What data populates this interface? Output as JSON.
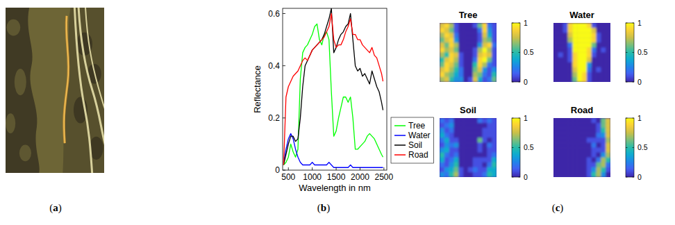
{
  "panel_labels": [
    "(a)",
    "(b)",
    "(c)"
  ],
  "chart_data": [
    {
      "type": "image"
    },
    {
      "type": "line",
      "x_label": "Wavelength in nm",
      "y_label": "Reflectance",
      "xlim": [
        380,
        2560
      ],
      "ylim": [
        0,
        0.62
      ],
      "xticks": [
        500,
        1000,
        1500,
        2000,
        2500
      ],
      "yticks": [
        0,
        0.2,
        0.4,
        0.6
      ],
      "grid": false,
      "legend": "east",
      "x": [
        400,
        450,
        500,
        550,
        600,
        650,
        700,
        750,
        800,
        850,
        900,
        950,
        1000,
        1050,
        1100,
        1150,
        1200,
        1250,
        1300,
        1350,
        1400,
        1450,
        1500,
        1550,
        1600,
        1650,
        1700,
        1750,
        1800,
        1850,
        1900,
        1950,
        2000,
        2050,
        2100,
        2150,
        2200,
        2250,
        2300,
        2350,
        2400,
        2450,
        2480
      ],
      "series": [
        {
          "name": "Tree",
          "color": "#00ff00",
          "values": [
            0.02,
            0.03,
            0.05,
            0.1,
            0.07,
            0.05,
            0.08,
            0.35,
            0.45,
            0.47,
            0.48,
            0.5,
            0.52,
            0.55,
            0.56,
            0.5,
            0.48,
            0.52,
            0.53,
            0.5,
            0.3,
            0.13,
            0.15,
            0.2,
            0.24,
            0.28,
            0.28,
            0.26,
            0.28,
            0.2,
            0.08,
            0.08,
            0.09,
            0.1,
            0.11,
            0.13,
            0.14,
            0.13,
            0.12,
            0.1,
            0.08,
            0.06,
            0.05
          ]
        },
        {
          "name": "Water",
          "color": "#0000ff",
          "values": [
            0.03,
            0.08,
            0.12,
            0.14,
            0.12,
            0.08,
            0.05,
            0.03,
            0.02,
            0.02,
            0.02,
            0.02,
            0.03,
            0.02,
            0.02,
            0.02,
            0.02,
            0.02,
            0.02,
            0.03,
            0.02,
            0.01,
            0.01,
            0.01,
            0.01,
            0.01,
            0.01,
            0.01,
            0.02,
            0.01,
            0.01,
            0.01,
            0.01,
            0.01,
            0.01,
            0.01,
            0.01,
            0.01,
            0.01,
            0.01,
            0.01,
            0.01,
            0.01
          ]
        },
        {
          "name": "Soil",
          "color": "#000000",
          "values": [
            0.02,
            0.06,
            0.1,
            0.13,
            0.13,
            0.11,
            0.12,
            0.2,
            0.32,
            0.4,
            0.42,
            0.44,
            0.46,
            0.47,
            0.48,
            0.49,
            0.5,
            0.52,
            0.55,
            0.58,
            0.62,
            0.45,
            0.47,
            0.5,
            0.52,
            0.53,
            0.55,
            0.56,
            0.6,
            0.5,
            0.4,
            0.38,
            0.39,
            0.36,
            0.37,
            0.35,
            0.33,
            0.38,
            0.35,
            0.32,
            0.3,
            0.26,
            0.23
          ]
        },
        {
          "name": "Road",
          "color": "#ff0000",
          "values": [
            0.02,
            0.28,
            0.32,
            0.34,
            0.36,
            0.37,
            0.38,
            0.4,
            0.42,
            0.43,
            0.42,
            0.44,
            0.46,
            0.47,
            0.48,
            0.49,
            0.5,
            0.51,
            0.53,
            0.55,
            0.6,
            0.5,
            0.47,
            0.48,
            0.48,
            0.5,
            0.53,
            0.55,
            0.58,
            0.52,
            0.52,
            0.5,
            0.5,
            0.48,
            0.47,
            0.46,
            0.45,
            0.47,
            0.44,
            0.43,
            0.4,
            0.37,
            0.34
          ]
        }
      ]
    },
    {
      "type": "heatmap",
      "title": "Tree",
      "colorbar_range": [
        0,
        1
      ],
      "colorbar_ticks": [
        0,
        0.5,
        1
      ],
      "cells": [
        [
          0.8,
          0.9,
          0.7,
          0.1,
          0.0,
          0.0,
          0.0,
          0.1,
          0.6,
          0.9,
          0.2,
          0.1
        ],
        [
          0.9,
          0.8,
          0.6,
          0.1,
          0.0,
          0.0,
          0.0,
          0.0,
          0.2,
          0.9,
          0.3,
          0.1
        ],
        [
          0.7,
          0.9,
          0.8,
          0.2,
          0.0,
          0.0,
          0.0,
          0.0,
          0.1,
          0.8,
          0.4,
          0.1
        ],
        [
          0.6,
          0.8,
          0.9,
          0.3,
          0.0,
          0.0,
          0.0,
          0.0,
          0.1,
          0.7,
          0.6,
          0.1
        ],
        [
          0.8,
          0.6,
          0.9,
          0.7,
          0.0,
          0.0,
          0.0,
          0.0,
          0.3,
          0.8,
          0.9,
          0.2
        ],
        [
          0.9,
          0.7,
          0.8,
          0.6,
          0.0,
          0.0,
          0.0,
          0.1,
          0.7,
          1.0,
          0.7,
          0.1
        ],
        [
          0.7,
          0.5,
          0.9,
          0.8,
          0.1,
          0.0,
          0.0,
          0.1,
          0.8,
          0.9,
          0.8,
          0.1
        ],
        [
          0.5,
          0.8,
          0.9,
          0.7,
          0.1,
          0.0,
          0.0,
          0.2,
          0.9,
          1.0,
          0.6,
          0.1
        ],
        [
          0.6,
          0.9,
          0.8,
          0.6,
          0.1,
          0.0,
          0.0,
          0.5,
          0.9,
          0.7,
          0.2,
          0.1
        ],
        [
          0.8,
          0.9,
          0.7,
          0.5,
          0.2,
          0.0,
          0.0,
          0.6,
          0.8,
          0.3,
          0.1,
          0.3
        ],
        [
          0.9,
          0.7,
          0.6,
          0.4,
          0.2,
          0.0,
          0.0,
          0.7,
          0.6,
          0.2,
          0.1,
          0.5
        ],
        [
          0.7,
          0.8,
          0.5,
          0.3,
          0.3,
          0.0,
          0.1,
          0.8,
          0.4,
          0.1,
          0.2,
          0.6
        ]
      ]
    },
    {
      "type": "heatmap",
      "title": "Water",
      "colorbar_range": [
        0,
        1
      ],
      "colorbar_ticks": [
        0,
        0.5,
        1
      ],
      "cells": [
        [
          0.0,
          0.0,
          0.1,
          0.9,
          1.0,
          1.0,
          1.0,
          0.9,
          0.1,
          0.0,
          0.0,
          0.0
        ],
        [
          0.0,
          0.0,
          0.1,
          0.9,
          1.0,
          1.0,
          1.0,
          1.0,
          0.8,
          0.0,
          0.0,
          0.0
        ],
        [
          0.0,
          0.0,
          0.0,
          0.8,
          1.0,
          1.0,
          1.0,
          1.0,
          0.9,
          0.1,
          0.0,
          0.0
        ],
        [
          0.0,
          0.0,
          0.0,
          0.7,
          1.0,
          1.0,
          1.0,
          1.0,
          0.9,
          0.1,
          0.0,
          0.0
        ],
        [
          0.0,
          0.0,
          0.0,
          0.2,
          1.0,
          1.0,
          1.0,
          1.0,
          0.6,
          0.0,
          0.0,
          0.0
        ],
        [
          0.0,
          0.0,
          0.0,
          0.1,
          1.0,
          1.0,
          1.0,
          0.9,
          0.2,
          0.0,
          0.1,
          0.0
        ],
        [
          0.0,
          0.1,
          0.0,
          0.1,
          0.9,
          1.0,
          1.0,
          0.9,
          0.1,
          0.0,
          0.0,
          0.0
        ],
        [
          0.0,
          0.0,
          0.0,
          0.1,
          0.9,
          1.0,
          1.0,
          0.8,
          0.0,
          0.0,
          0.0,
          0.0
        ],
        [
          0.0,
          0.0,
          0.0,
          0.0,
          0.9,
          1.0,
          1.0,
          0.3,
          0.0,
          0.0,
          0.0,
          0.0
        ],
        [
          0.0,
          0.0,
          0.0,
          0.0,
          0.8,
          1.0,
          1.0,
          0.2,
          0.0,
          0.1,
          0.0,
          0.0
        ],
        [
          0.0,
          0.0,
          0.0,
          0.0,
          0.7,
          1.0,
          0.9,
          0.1,
          0.0,
          0.0,
          0.0,
          0.0
        ],
        [
          0.0,
          0.0,
          0.0,
          0.0,
          0.6,
          1.0,
          0.9,
          0.1,
          0.0,
          0.0,
          0.0,
          0.0
        ]
      ]
    },
    {
      "type": "heatmap",
      "title": "Soil",
      "colorbar_range": [
        0,
        1
      ],
      "colorbar_ticks": [
        0,
        0.5,
        1
      ],
      "cells": [
        [
          0.2,
          0.1,
          0.2,
          0.0,
          0.0,
          0.0,
          0.0,
          0.0,
          0.2,
          0.1,
          0.2,
          0.1
        ],
        [
          0.1,
          0.2,
          0.3,
          0.0,
          0.0,
          0.0,
          0.0,
          0.0,
          0.0,
          0.0,
          0.1,
          0.1
        ],
        [
          0.3,
          0.1,
          0.2,
          0.0,
          0.0,
          0.0,
          0.0,
          0.0,
          0.0,
          0.1,
          0.1,
          0.1
        ],
        [
          0.4,
          0.2,
          0.1,
          0.0,
          0.0,
          0.0,
          0.0,
          0.0,
          0.0,
          0.1,
          0.1,
          0.1
        ],
        [
          0.2,
          0.4,
          0.1,
          0.1,
          0.0,
          0.0,
          0.0,
          0.0,
          0.6,
          0.1,
          0.0,
          0.1
        ],
        [
          0.1,
          0.3,
          0.2,
          0.3,
          0.0,
          0.0,
          0.0,
          0.0,
          0.1,
          0.0,
          0.2,
          0.1
        ],
        [
          0.3,
          0.4,
          0.1,
          0.1,
          0.0,
          0.0,
          0.0,
          0.0,
          0.1,
          0.0,
          0.1,
          0.1
        ],
        [
          0.5,
          0.2,
          0.1,
          0.2,
          0.0,
          0.0,
          0.0,
          0.0,
          0.0,
          0.0,
          0.1,
          0.2
        ],
        [
          0.4,
          0.1,
          0.2,
          0.4,
          0.0,
          0.0,
          0.0,
          0.1,
          0.1,
          0.1,
          0.1,
          0.4
        ],
        [
          0.2,
          0.1,
          0.3,
          0.5,
          0.0,
          0.0,
          0.0,
          0.1,
          0.1,
          0.0,
          0.2,
          0.5
        ],
        [
          0.1,
          0.3,
          0.4,
          0.6,
          0.1,
          0.0,
          0.1,
          0.2,
          0.1,
          0.1,
          0.4,
          0.4
        ],
        [
          0.3,
          0.2,
          0.5,
          0.7,
          0.1,
          0.0,
          0.0,
          0.1,
          0.1,
          0.2,
          0.5,
          0.4
        ]
      ]
    },
    {
      "type": "heatmap",
      "title": "Road",
      "colorbar_range": [
        0,
        1
      ],
      "colorbar_ticks": [
        0,
        0.5,
        1
      ],
      "cells": [
        [
          0.0,
          0.0,
          0.0,
          0.0,
          0.0,
          0.0,
          0.0,
          0.0,
          0.1,
          0.0,
          0.6,
          0.8
        ],
        [
          0.0,
          0.0,
          0.0,
          0.0,
          0.0,
          0.0,
          0.0,
          0.0,
          0.0,
          0.1,
          0.6,
          0.8
        ],
        [
          0.0,
          0.0,
          0.0,
          0.0,
          0.0,
          0.0,
          0.0,
          0.0,
          0.0,
          0.1,
          0.5,
          0.8
        ],
        [
          0.0,
          0.0,
          0.0,
          0.0,
          0.0,
          0.0,
          0.0,
          0.0,
          0.0,
          0.2,
          0.3,
          0.8
        ],
        [
          0.0,
          0.0,
          0.0,
          0.0,
          0.0,
          0.0,
          0.0,
          0.1,
          0.1,
          0.1,
          0.1,
          0.7
        ],
        [
          0.0,
          0.0,
          0.0,
          0.0,
          0.0,
          0.0,
          0.0,
          0.0,
          0.2,
          0.0,
          0.1,
          0.8
        ],
        [
          0.0,
          0.0,
          0.0,
          0.0,
          0.0,
          0.0,
          0.0,
          0.0,
          0.1,
          0.1,
          0.1,
          0.8
        ],
        [
          0.0,
          0.0,
          0.0,
          0.0,
          0.0,
          0.0,
          0.0,
          0.0,
          0.1,
          0.0,
          0.3,
          0.7
        ],
        [
          0.0,
          0.0,
          0.0,
          0.0,
          0.0,
          0.0,
          0.0,
          0.1,
          0.0,
          0.2,
          0.7,
          0.5
        ],
        [
          0.0,
          0.0,
          0.0,
          0.0,
          0.0,
          0.0,
          0.0,
          0.1,
          0.1,
          0.6,
          0.7,
          0.2
        ],
        [
          0.0,
          0.0,
          0.0,
          0.0,
          0.0,
          0.0,
          0.0,
          0.1,
          0.3,
          0.7,
          0.5,
          0.1
        ],
        [
          0.0,
          0.0,
          0.0,
          0.0,
          0.0,
          0.0,
          0.0,
          0.1,
          0.5,
          0.7,
          0.3,
          0.0
        ]
      ]
    }
  ]
}
